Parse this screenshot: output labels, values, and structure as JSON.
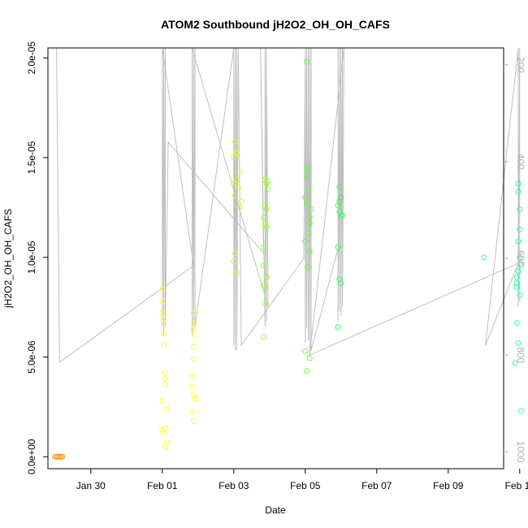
{
  "chart_data": {
    "type": "scatter",
    "title": "ATOM2 Southbound jH2O2_OH_OH_CAFS",
    "xlabel": "Date",
    "ylabel": "jH2O2_OH_OH_CAFS",
    "x_ticks": [
      "Jan 30",
      "Feb 01",
      "Feb 03",
      "Feb 05",
      "Feb 07",
      "Feb 09",
      "Feb 11"
    ],
    "y_ticks": [
      "0.0e+00",
      "5.0e-06",
      "1.0e-05",
      "1.5e-05",
      "2.0e-05"
    ],
    "y2_ticks": [
      "200",
      "400",
      "600",
      "800",
      "1000"
    ],
    "xlim_days_rel_jan30": [
      -1.2,
      11.55
    ],
    "ylim": [
      -6e-07,
      2.05e-05
    ],
    "y2lim": [
      1035,
      165
    ],
    "y2_color": "#b3b3b3",
    "flight_track_color": "#c0c0c0",
    "series": [
      {
        "color": "#ff9900",
        "points": [
          [
            "Jan 29 00:00",
            0.0
          ],
          [
            "Jan 29 01:00",
            0.0
          ],
          [
            "Jan 29 02:00",
            0.0
          ],
          [
            "Jan 29 03:00",
            0.0
          ],
          [
            "Jan 29 04:00",
            0.0
          ],
          [
            "Jan 29 05:00",
            0.0
          ]
        ]
      },
      {
        "color": "#ffff33",
        "points": [
          [
            "Feb 01 00:00",
            8.4e-06
          ],
          [
            "Feb 01 00:00",
            7.8e-06
          ],
          [
            "Feb 01 00:00",
            7.2e-06
          ],
          [
            "Feb 01 01:00",
            6.9e-06
          ],
          [
            "Feb 01 01:00",
            6.2e-06
          ],
          [
            "Feb 01 01:00",
            5.6e-06
          ],
          [
            "Feb 01 02:00",
            4.2e-06
          ],
          [
            "Feb 01 02:00",
            3.9e-06
          ],
          [
            "Feb 01 02:00",
            3.6e-06
          ],
          [
            "Feb 01 00:00",
            2.8e-06
          ],
          [
            "Feb 01 03:00",
            2.4e-06
          ],
          [
            "Feb 01 02:00",
            1.45e-06
          ],
          [
            "Feb 01 00:00",
            1.35e-06
          ],
          [
            "Feb 01 01:00",
            1.2e-06
          ],
          [
            "Feb 01 03:00",
            7e-07
          ],
          [
            "Feb 01 02:00",
            5e-07
          ],
          [
            "Feb 01 21:00",
            7.2e-06
          ],
          [
            "Feb 01 22:00",
            6.7e-06
          ],
          [
            "Feb 01 21:00",
            6.4e-06
          ],
          [
            "Feb 01 22:00",
            6.1e-06
          ],
          [
            "Feb 01 21:00",
            5.5e-06
          ],
          [
            "Feb 01 21:00",
            4.9e-06
          ],
          [
            "Feb 01 20:00",
            4e-06
          ],
          [
            "Feb 01 20:00",
            3.5e-06
          ],
          [
            "Feb 01 21:00",
            3.1e-06
          ],
          [
            "Feb 01 22:00",
            2.95e-06
          ],
          [
            "Feb 01 22:00",
            2.9e-06
          ],
          [
            "Feb 01 20:00",
            2.25e-06
          ],
          [
            "Feb 01 21:00",
            1.8e-06
          ]
        ]
      },
      {
        "color": "#ccff33",
        "points": [
          [
            "Feb 03 01:00",
            1.58e-05
          ],
          [
            "Feb 03 02:00",
            1.53e-05
          ],
          [
            "Feb 03 02:00",
            1.52e-05
          ],
          [
            "Feb 03 00:00",
            1.5e-05
          ],
          [
            "Feb 03 04:00",
            1.43e-05
          ],
          [
            "Feb 03 02:00",
            1.39e-05
          ],
          [
            "Feb 03 00:00",
            1.37e-05
          ],
          [
            "Feb 03 03:00",
            1.35e-05
          ],
          [
            "Feb 03 01:00",
            1.31e-05
          ],
          [
            "Feb 03 05:00",
            1.28e-05
          ],
          [
            "Feb 03 04:00",
            1.25e-05
          ],
          [
            "Feb 03 01:00",
            1.02e-05
          ],
          [
            "Feb 03 00:00",
            9.8e-06
          ],
          [
            "Feb 03 02:00",
            9.2e-06
          ]
        ]
      },
      {
        "color": "#99ff33",
        "points": [
          [
            "Feb 03 21:00",
            1.39e-05
          ],
          [
            "Feb 03 23:00",
            1.38e-05
          ],
          [
            "Feb 03 22:00",
            1.37e-05
          ],
          [
            "Feb 03 23:00",
            1.34e-05
          ],
          [
            "Feb 03 21:00",
            1.26e-05
          ],
          [
            "Feb 03 22:00",
            1.24e-05
          ],
          [
            "Feb 03 20:00",
            1.2e-05
          ],
          [
            "Feb 03 21:00",
            1.17e-05
          ],
          [
            "Feb 03 22:00",
            1.15e-05
          ],
          [
            "Feb 03 20:00",
            1.05e-05
          ],
          [
            "Feb 03 20:00",
            9.6e-06
          ],
          [
            "Feb 03 22:00",
            9e-06
          ],
          [
            "Feb 03 20:00",
            8.6e-06
          ],
          [
            "Feb 03 21:00",
            8.5e-06
          ],
          [
            "Feb 03 21:00",
            7.7e-06
          ],
          [
            "Feb 03 20:00",
            6e-06
          ]
        ]
      },
      {
        "color": "#66ff33",
        "points": [
          [
            "Feb 05 01:00",
            1.98e-05
          ],
          [
            "Feb 05 01:00",
            1.45e-05
          ],
          [
            "Feb 05 01:00",
            1.41e-05
          ],
          [
            "Feb 05 02:00",
            1.34e-05
          ],
          [
            "Feb 05 00:00",
            1.3e-05
          ],
          [
            "Feb 05 01:00",
            1.27e-05
          ],
          [
            "Feb 05 04:00",
            1.24e-05
          ],
          [
            "Feb 05 03:00",
            1.2e-05
          ],
          [
            "Feb 05 03:00",
            1.17e-05
          ],
          [
            "Feb 05 02:00",
            1.12e-05
          ],
          [
            "Feb 05 00:00",
            1.08e-05
          ],
          [
            "Feb 05 03:00",
            1.03e-05
          ],
          [
            "Feb 05 02:00",
            9.5e-06
          ],
          [
            "Feb 05 00:00",
            5.3e-06
          ],
          [
            "Feb 05 03:00",
            4.95e-06
          ],
          [
            "Feb 05 01:00",
            4.3e-06
          ]
        ]
      },
      {
        "color": "#33ff66",
        "points": [
          [
            "Feb 05 23:00",
            1.35e-05
          ],
          [
            "Feb 06 00:00",
            1.3e-05
          ],
          [
            "Feb 05 23:00",
            1.28e-05
          ],
          [
            "Feb 05 22:00",
            1.26e-05
          ],
          [
            "Feb 05 23:00",
            1.23e-05
          ],
          [
            "Feb 06 00:00",
            1.21e-05
          ],
          [
            "Feb 06 01:00",
            1.21e-05
          ],
          [
            "Feb 05 22:00",
            1.05e-05
          ],
          [
            "Feb 05 23:00",
            8.9e-06
          ],
          [
            "Feb 06 00:00",
            8.7e-06
          ],
          [
            "Feb 05 22:00",
            6.5e-06
          ]
        ]
      },
      {
        "color": "#33ff99",
        "points": [
          [
            "Feb 10 00:00",
            1e-05
          ],
          [
            "Feb 10 23:00",
            1.37e-05
          ],
          [
            "Feb 10 23:00",
            1.33e-05
          ],
          [
            "Feb 11 00:00",
            1.24e-05
          ],
          [
            "Feb 11 00:00",
            1.14e-05
          ],
          [
            "Feb 10 23:00",
            1.08e-05
          ],
          [
            "Feb 11 00:00",
            1e-05
          ],
          [
            "Feb 11 01:00",
            9.6e-06
          ],
          [
            "Feb 10 23:00",
            9.3e-06
          ],
          [
            "Feb 10 22:00",
            9e-06
          ],
          [
            "Feb 10 22:00",
            8.7e-06
          ],
          [
            "Feb 10 22:00",
            8.5e-06
          ],
          [
            "Feb 10 22:00",
            6.7e-06
          ],
          [
            "Feb 11 00:00",
            8.1e-06
          ],
          [
            "Feb 10 23:00",
            5.7e-06
          ],
          [
            "Feb 10 21:00",
            4.7e-06
          ],
          [
            "Feb 11 01:00",
            2.3e-06
          ]
        ]
      }
    ],
    "flight_track_y2": [
      [
        "Jan 29 01:00",
        160
      ],
      [
        "Jan 29 03:00",
        815
      ],
      [
        "Feb 01 21:00",
        615
      ],
      [
        "Feb 01 00:00",
        160
      ],
      [
        "Feb 01 00:00",
        740
      ],
      [
        "Feb 01 01:00",
        160
      ],
      [
        "Feb 01 01:00",
        760
      ],
      [
        "Feb 01 02:00",
        160
      ],
      [
        "Feb 01 02:00",
        740
      ],
      [
        "Feb 01 04:00",
        360
      ],
      [
        "Feb 03 20:00",
        590
      ],
      [
        "Feb 03 18:00",
        160
      ],
      [
        "Feb 03 21:00",
        740
      ],
      [
        "Feb 03 21:00",
        160
      ],
      [
        "Feb 03 22:00",
        730
      ],
      [
        "Feb 03 22:00",
        160
      ],
      [
        "Feb 03 23:00",
        700
      ],
      [
        "Feb 01 20:00",
        160
      ],
      [
        "Feb 01 20:00",
        760
      ],
      [
        "Feb 01 21:00",
        160
      ],
      [
        "Feb 01 21:00",
        750
      ],
      [
        "Feb 01 22:00",
        160
      ],
      [
        "Feb 01 22:00",
        740
      ],
      [
        "Feb 03 00:00",
        160
      ],
      [
        "Feb 03 00:00",
        780
      ],
      [
        "Feb 03 01:00",
        160
      ],
      [
        "Feb 03 01:00",
        790
      ],
      [
        "Feb 03 02:00",
        160
      ],
      [
        "Feb 03 02:00",
        790
      ],
      [
        "Feb 03 03:00",
        160
      ],
      [
        "Feb 03 05:00",
        780
      ],
      [
        "Feb 04 23:00",
        600
      ],
      [
        "Feb 05 00:00",
        160
      ],
      [
        "Feb 05 00:00",
        775
      ],
      [
        "Feb 05 01:00",
        160
      ],
      [
        "Feb 05 01:00",
        745
      ],
      [
        "Feb 05 02:00",
        160
      ],
      [
        "Feb 05 02:00",
        770
      ],
      [
        "Feb 05 03:00",
        160
      ],
      [
        "Feb 05 03:00",
        805
      ],
      [
        "Feb 05 04:00",
        160
      ],
      [
        "Feb 05 04:00",
        790
      ],
      [
        "Feb 05 22:00",
        580
      ],
      [
        "Feb 05 22:00",
        160
      ],
      [
        "Feb 05 22:00",
        730
      ],
      [
        "Feb 05 23:00",
        160
      ],
      [
        "Feb 05 23:00",
        710
      ],
      [
        "Feb 06 00:00",
        160
      ],
      [
        "Feb 06 00:00",
        720
      ],
      [
        "Feb 06 01:00",
        160
      ],
      [
        "Feb 06 01:00",
        700
      ],
      [
        "Feb 06 02:00",
        160
      ],
      [
        "Feb 05 03:00",
        800
      ],
      [
        "Feb 10 23:00",
        610
      ],
      [
        "Feb 10 01:00",
        780
      ],
      [
        "Feb 10 23:00",
        160
      ],
      [
        "Feb 10 23:00",
        700
      ],
      [
        "Feb 11 00:00",
        160
      ],
      [
        "Feb 11 00:00",
        690
      ]
    ]
  }
}
